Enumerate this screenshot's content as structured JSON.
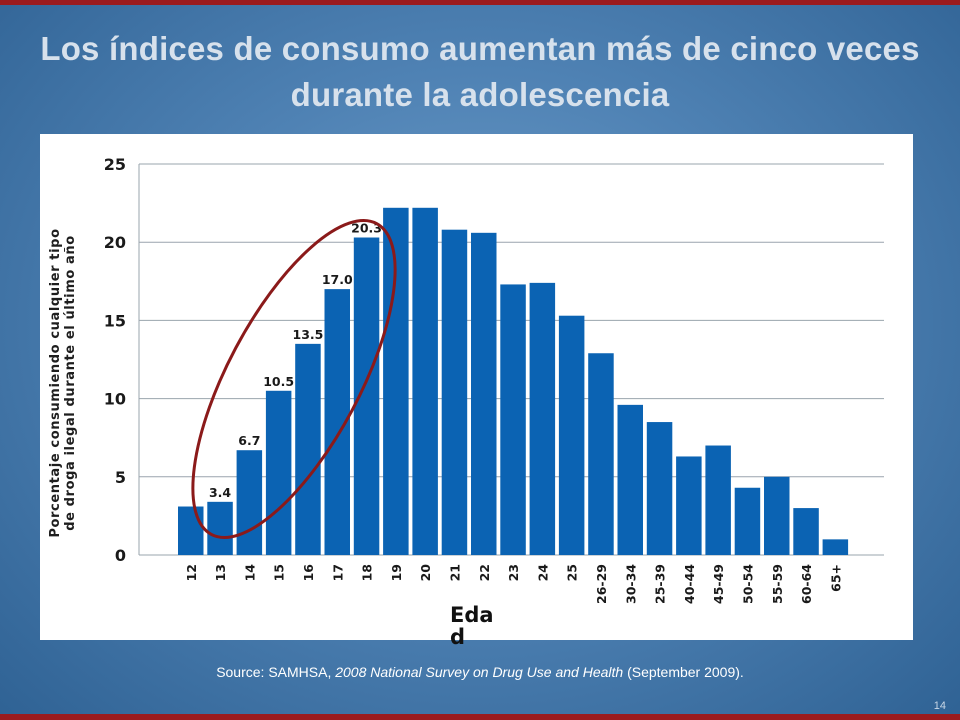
{
  "slide": {
    "title": "Los índices de consumo aumentan más de cinco veces durante la adolescencia",
    "source_prefix": "Source: SAMHSA, ",
    "source_italic": "2008 National Survey on Drug Use and Health",
    "source_suffix": " (September 2009).",
    "page_number": "14"
  },
  "colors": {
    "bar": "#0b63b3",
    "grid": "#9aa4ad",
    "highlight_ellipse": "#8b1a1a",
    "rule": "#9b1b1e"
  },
  "chart_data": {
    "type": "bar",
    "title": "",
    "xlabel": "Edad",
    "ylabel": "Porcentaje consumiendo cualquier tipo de droga ilegal durante el último año",
    "ylim": [
      0,
      25
    ],
    "yticks": [
      0,
      5,
      10,
      15,
      20,
      25
    ],
    "grid": true,
    "categories": [
      "12",
      "13",
      "14",
      "15",
      "16",
      "17",
      "18",
      "19",
      "20",
      "21",
      "22",
      "23",
      "24",
      "25",
      "26-29",
      "30-34",
      "25-39",
      "40-44",
      "45-49",
      "50-54",
      "55-59",
      "60-64",
      "65+"
    ],
    "values": [
      3.1,
      3.4,
      6.7,
      10.5,
      13.5,
      17.0,
      20.3,
      22.2,
      22.2,
      20.8,
      20.6,
      17.3,
      17.4,
      15.3,
      12.9,
      9.6,
      8.5,
      6.3,
      7.0,
      4.3,
      5.0,
      3.0,
      1.0
    ],
    "data_labels": [
      "",
      "3.4",
      "6.7",
      "10.5",
      "13.5",
      "17.0",
      "20.3",
      "",
      "",
      "",
      "",
      "",
      "",
      "",
      "",
      "",
      "",
      "",
      "",
      "",
      "",
      "",
      ""
    ],
    "annotation": "ellipse highlighting ages 13 to 18"
  }
}
